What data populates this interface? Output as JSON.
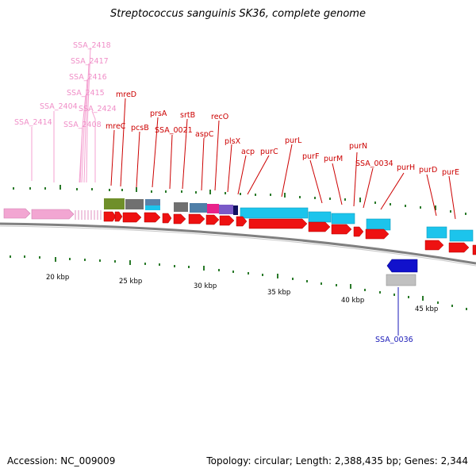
{
  "title": "Streptococcus sanguinis SK36, complete genome",
  "footer": {
    "accession": "Accession: NC_009009",
    "stats": "Topology: circular; Length: 2,388,435 bp; Genes: 2,344"
  },
  "colors": {
    "pink_genes": "#f2a6d2",
    "red_genes": "#ee1111",
    "cyan_genes": "#1cc4ec",
    "blue_gene": "#1111cc",
    "top_labels": "#cc0000",
    "pink_labels": "#f08fc8",
    "blue_label": "#1a1ab8",
    "backbone": "#808080",
    "tick_marks": "#2a7a2a"
  },
  "scale_labels": [
    "20 kbp",
    "25 kbp",
    "30 kbp",
    "35 kbp",
    "40 kbp",
    "45 kbp"
  ],
  "gene_labels": {
    "pink": [
      "SSA_2418",
      "SSA_2417",
      "SSA_2416",
      "SSA_2415",
      "SSA_2404",
      "SSA_2424",
      "SSA_2414",
      "SSA_2408"
    ],
    "red": [
      "mreD",
      "mreC",
      "pcsB",
      "prsA",
      "SSA_0021",
      "srtB",
      "aspC",
      "recO",
      "plsX",
      "acp",
      "purC",
      "purL",
      "purF",
      "purM",
      "purN",
      "SSA_0034",
      "purH",
      "purD",
      "purE"
    ],
    "blue": [
      "SSA_0036"
    ]
  }
}
